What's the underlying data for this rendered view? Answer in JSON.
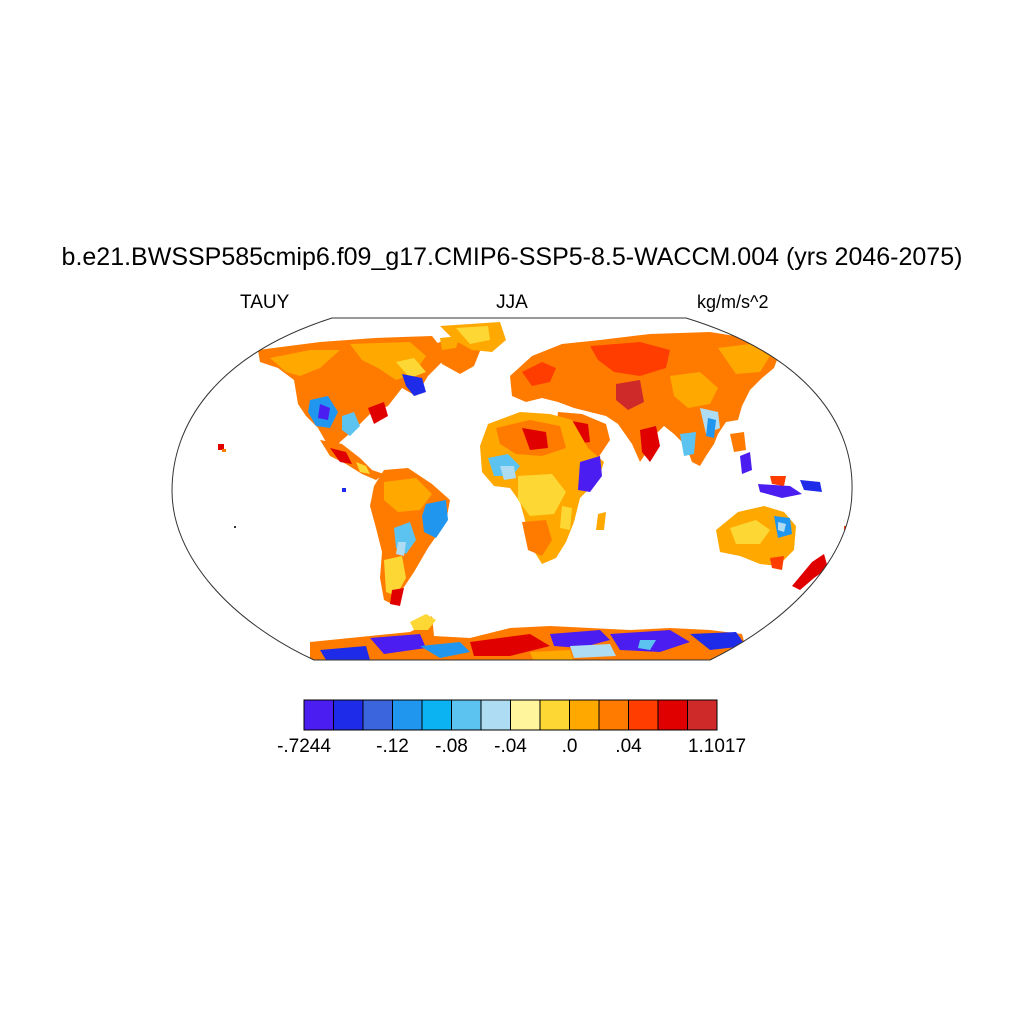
{
  "title": "b.e21.BWSSP585cmip6.f09_g17.CMIP6-SSP5-8.5-WACCM.004 (yrs 2046-2075)",
  "left_string": "TAUY",
  "center_string": "JJA",
  "right_string": "kg/m/s^2",
  "colorbar": {
    "colors": [
      "#4b1df0",
      "#1e2be8",
      "#3b65dd",
      "#2196ee",
      "#0bb3f3",
      "#5cc2f0",
      "#aedcf2",
      "#fff59d",
      "#fdd835",
      "#ffa800",
      "#ff7b00",
      "#ff3d00",
      "#e00000",
      "#cf2a2a"
    ],
    "labels": [
      {
        "text": "-.7244",
        "boundary": 0
      },
      {
        "text": "-.12",
        "boundary": 3
      },
      {
        "text": "-.08",
        "boundary": 5
      },
      {
        "text": "-.04",
        "boundary": 7
      },
      {
        "text": ".0",
        "boundary": 9
      },
      {
        "text": ".04",
        "boundary": 11
      },
      {
        "text": "1.1017",
        "boundary": 14
      }
    ]
  },
  "map": {
    "projection": "robinson",
    "variable": "TAUY",
    "season": "JJA",
    "colors": {
      "ocean": "#ffffff",
      "outline": "#333333"
    }
  }
}
